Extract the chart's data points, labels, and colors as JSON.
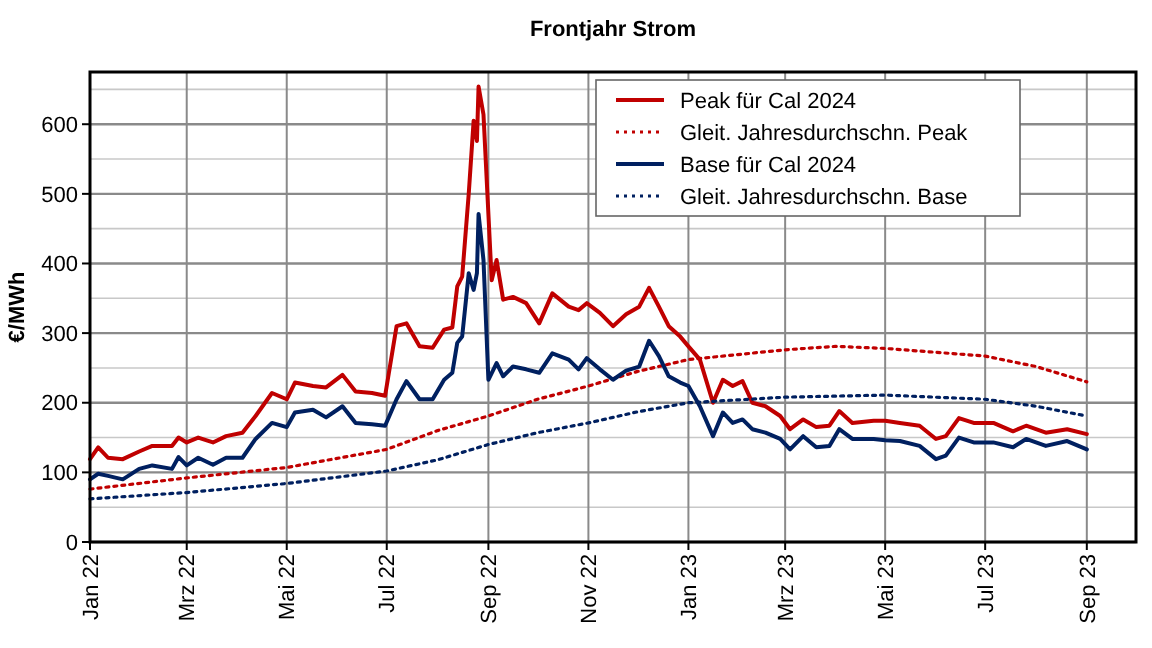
{
  "chart_data": {
    "type": "line",
    "title": "Frontjahr Strom",
    "ylabel": "€/MWh",
    "xlim": [
      "2022-01-01",
      "2023-10-01"
    ],
    "xticks": [
      {
        "value": "2022-01-01",
        "label": "Jan 22"
      },
      {
        "value": "2022-03-01",
        "label": "Mrz 22"
      },
      {
        "value": "2022-05-01",
        "label": "Mai 22"
      },
      {
        "value": "2022-07-01",
        "label": "Jul 22"
      },
      {
        "value": "2022-09-01",
        "label": "Sep 22"
      },
      {
        "value": "2022-11-01",
        "label": "Nov 22"
      },
      {
        "value": "2023-01-01",
        "label": "Jan 23"
      },
      {
        "value": "2023-03-01",
        "label": "Mrz 23"
      },
      {
        "value": "2023-05-01",
        "label": "Mai 23"
      },
      {
        "value": "2023-07-01",
        "label": "Jul 23"
      },
      {
        "value": "2023-09-01",
        "label": "Sep 23"
      }
    ],
    "ylim": [
      0,
      675
    ],
    "yticks": [
      0,
      {
        "value": 50,
        "label": null
      },
      100,
      {
        "value": 150,
        "label": null
      },
      200,
      {
        "value": 250,
        "label": null
      },
      300,
      {
        "value": 350,
        "label": null
      },
      400,
      {
        "value": 450,
        "label": null
      },
      500,
      {
        "value": 550,
        "label": null
      },
      600,
      {
        "value": 650,
        "label": null
      }
    ],
    "grid": true,
    "legend": "top right",
    "marker": "none",
    "series": [
      {
        "name": "Peak für Cal 2024",
        "color": "#c00000",
        "line_style": "solid",
        "x": [
          "2022-01-01",
          "2022-01-06",
          "2022-01-12",
          "2022-01-21",
          "2022-01-31",
          "2022-02-08",
          "2022-02-20",
          "2022-02-24",
          "2022-03-01",
          "2022-03-08",
          "2022-03-17",
          "2022-03-25",
          "2022-04-04",
          "2022-04-12",
          "2022-04-22",
          "2022-05-01",
          "2022-05-06",
          "2022-05-17",
          "2022-05-25",
          "2022-06-04",
          "2022-06-12",
          "2022-06-22",
          "2022-06-30",
          "2022-07-07",
          "2022-07-13",
          "2022-07-21",
          "2022-07-29",
          "2022-08-05",
          "2022-08-10",
          "2022-08-13",
          "2022-08-16",
          "2022-08-20",
          "2022-08-23",
          "2022-08-25",
          "2022-08-26",
          "2022-08-29",
          "2022-09-03",
          "2022-09-06",
          "2022-09-10",
          "2022-09-16",
          "2022-09-24",
          "2022-10-02",
          "2022-10-10",
          "2022-10-20",
          "2022-10-26",
          "2022-10-31",
          "2022-11-08",
          "2022-11-16",
          "2022-11-24",
          "2022-12-02",
          "2022-12-08",
          "2022-12-14",
          "2022-12-20",
          "2022-12-27",
          "2023-01-01",
          "2023-01-08",
          "2023-01-16",
          "2023-01-22",
          "2023-01-28",
          "2023-02-03",
          "2023-02-09",
          "2023-02-17",
          "2023-02-26",
          "2023-03-04",
          "2023-03-12",
          "2023-03-20",
          "2023-03-28",
          "2023-04-03",
          "2023-04-11",
          "2023-04-24",
          "2023-05-01",
          "2023-05-10",
          "2023-05-22",
          "2023-06-01",
          "2023-06-07",
          "2023-06-15",
          "2023-06-24",
          "2023-07-06",
          "2023-07-18",
          "2023-07-26",
          "2023-08-07",
          "2023-08-20",
          "2023-09-01"
        ],
        "values": [
          119,
          136,
          121,
          119,
          130,
          138,
          138,
          150,
          143,
          150,
          143,
          152,
          157,
          181,
          214,
          205,
          229,
          224,
          222,
          240,
          216,
          214,
          210,
          310,
          314,
          281,
          279,
          305,
          308,
          367,
          381,
          500,
          605,
          576,
          654,
          614,
          376,
          405,
          348,
          352,
          343,
          314,
          357,
          338,
          333,
          343,
          329,
          310,
          327,
          338,
          365,
          338,
          310,
          295,
          281,
          262,
          200,
          233,
          224,
          231,
          200,
          195,
          181,
          162,
          176,
          165,
          167,
          188,
          171,
          174,
          174,
          171,
          167,
          148,
          152,
          178,
          171,
          171,
          159,
          167,
          157,
          162,
          155
        ]
      },
      {
        "name": "Gleit. Jahresdurchschn. Peak",
        "color": "#c00000",
        "line_style": "dotted",
        "x": [
          "2022-01-01",
          "2022-03-01",
          "2022-05-01",
          "2022-07-01",
          "2022-08-01",
          "2022-09-01",
          "2022-10-01",
          "2022-11-01",
          "2022-12-01",
          "2023-01-01",
          "2023-03-01",
          "2023-04-01",
          "2023-05-01",
          "2023-07-01",
          "2023-08-01",
          "2023-09-01"
        ],
        "values": [
          76,
          92,
          107,
          133,
          160,
          181,
          205,
          224,
          245,
          262,
          276,
          281,
          278,
          267,
          252,
          230
        ]
      },
      {
        "name": "Base für Cal 2024",
        "color": "#002060",
        "line_style": "solid",
        "x": [
          "2022-01-01",
          "2022-01-06",
          "2022-01-12",
          "2022-01-21",
          "2022-01-31",
          "2022-02-08",
          "2022-02-20",
          "2022-02-24",
          "2022-03-01",
          "2022-03-08",
          "2022-03-17",
          "2022-03-25",
          "2022-04-04",
          "2022-04-12",
          "2022-04-22",
          "2022-05-01",
          "2022-05-06",
          "2022-05-17",
          "2022-05-25",
          "2022-06-04",
          "2022-06-12",
          "2022-06-22",
          "2022-06-30",
          "2022-07-07",
          "2022-07-13",
          "2022-07-21",
          "2022-07-29",
          "2022-08-05",
          "2022-08-10",
          "2022-08-13",
          "2022-08-16",
          "2022-08-20",
          "2022-08-23",
          "2022-08-25",
          "2022-08-26",
          "2022-08-29",
          "2022-09-01",
          "2022-09-06",
          "2022-09-10",
          "2022-09-16",
          "2022-09-24",
          "2022-10-02",
          "2022-10-10",
          "2022-10-20",
          "2022-10-26",
          "2022-10-31",
          "2022-11-08",
          "2022-11-16",
          "2022-11-24",
          "2022-12-02",
          "2022-12-08",
          "2022-12-14",
          "2022-12-20",
          "2022-12-27",
          "2023-01-01",
          "2023-01-08",
          "2023-01-16",
          "2023-01-22",
          "2023-01-28",
          "2023-02-03",
          "2023-02-09",
          "2023-02-17",
          "2023-02-26",
          "2023-03-04",
          "2023-03-12",
          "2023-03-20",
          "2023-03-28",
          "2023-04-03",
          "2023-04-11",
          "2023-04-24",
          "2023-05-01",
          "2023-05-10",
          "2023-05-22",
          "2023-06-01",
          "2023-06-07",
          "2023-06-15",
          "2023-06-24",
          "2023-07-06",
          "2023-07-18",
          "2023-07-26",
          "2023-08-07",
          "2023-08-20",
          "2023-09-01"
        ],
        "values": [
          90,
          98,
          95,
          90,
          105,
          110,
          105,
          122,
          110,
          121,
          111,
          121,
          121,
          148,
          171,
          165,
          186,
          190,
          179,
          195,
          171,
          169,
          167,
          205,
          231,
          205,
          205,
          233,
          243,
          286,
          295,
          386,
          362,
          386,
          471,
          405,
          233,
          257,
          238,
          252,
          248,
          243,
          271,
          262,
          248,
          264,
          248,
          233,
          246,
          252,
          289,
          267,
          238,
          229,
          224,
          195,
          152,
          186,
          171,
          176,
          162,
          157,
          148,
          133,
          152,
          136,
          138,
          162,
          148,
          148,
          146,
          145,
          138,
          119,
          124,
          150,
          143,
          143,
          136,
          148,
          138,
          145,
          133
        ]
      },
      {
        "name": "Gleit. Jahresdurchschn. Base",
        "color": "#002060",
        "line_style": "dotted",
        "x": [
          "2022-01-01",
          "2022-03-01",
          "2022-05-01",
          "2022-07-01",
          "2022-08-01",
          "2022-09-01",
          "2022-10-01",
          "2022-11-01",
          "2022-12-01",
          "2023-01-01",
          "2023-03-01",
          "2023-05-01",
          "2023-07-01",
          "2023-08-01",
          "2023-09-01"
        ],
        "values": [
          62,
          71,
          84,
          102,
          118,
          140,
          157,
          171,
          187,
          200,
          208,
          211,
          205,
          195,
          181
        ]
      }
    ]
  }
}
